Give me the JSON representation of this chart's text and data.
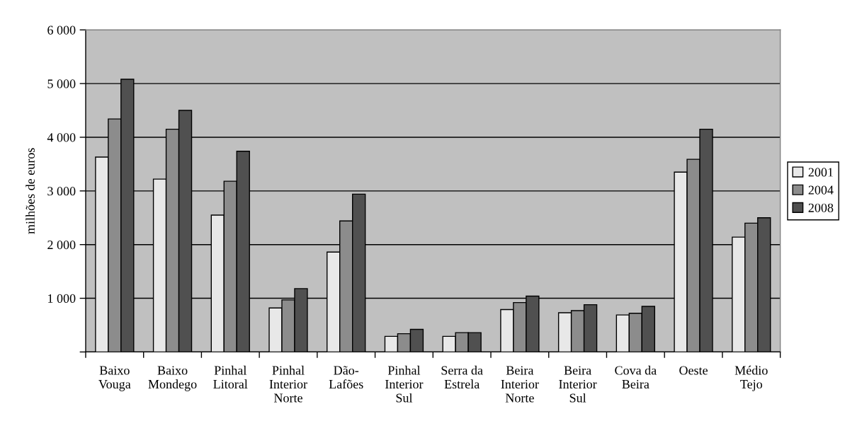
{
  "chart_data": {
    "type": "bar",
    "ylabel": "milhões de euros",
    "categories": [
      "Baixo Vouga",
      "Baixo Mondego",
      "Pinhal Litoral",
      "Pinhal Interior Norte",
      "Dão-Lafões",
      "Pinhal Interior Sul",
      "Serra da Estrela",
      "Beira Interior Norte",
      "Beira Interior Sul",
      "Cova da Beira",
      "Oeste",
      "Médio Tejo"
    ],
    "series": [
      {
        "name": "2001",
        "color": "#e8e8e8",
        "values": [
          3630,
          3220,
          2550,
          820,
          1860,
          290,
          290,
          790,
          730,
          690,
          3350,
          2140
        ]
      },
      {
        "name": "2004",
        "color": "#8c8c8c",
        "values": [
          4340,
          4150,
          3180,
          970,
          2440,
          340,
          360,
          920,
          770,
          720,
          3590,
          2400
        ]
      },
      {
        "name": "2008",
        "color": "#505050",
        "values": [
          5080,
          4500,
          3740,
          1180,
          2940,
          420,
          360,
          1040,
          880,
          850,
          4150,
          2500
        ]
      }
    ],
    "ylim": [
      0,
      6000
    ],
    "yticks": [
      {
        "value": 0,
        "label": null
      },
      {
        "value": 1000,
        "label": "1 000"
      },
      {
        "value": 2000,
        "label": "2 000"
      },
      {
        "value": 3000,
        "label": "3 000"
      },
      {
        "value": 4000,
        "label": "4 000"
      },
      {
        "value": 5000,
        "label": "5 000"
      },
      {
        "value": 6000,
        "label": "6 000"
      }
    ],
    "grid": "y",
    "legend": "right"
  }
}
